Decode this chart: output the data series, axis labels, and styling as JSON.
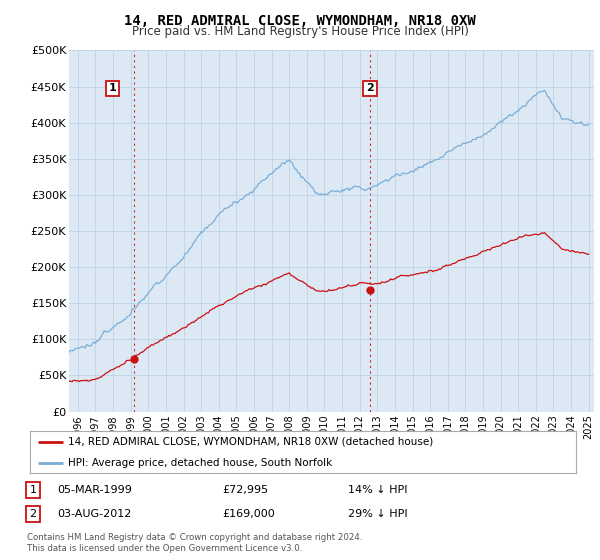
{
  "title": "14, RED ADMIRAL CLOSE, WYMONDHAM, NR18 0XW",
  "subtitle": "Price paid vs. HM Land Registry's House Price Index (HPI)",
  "ylabel_ticks": [
    "£0",
    "£50K",
    "£100K",
    "£150K",
    "£200K",
    "£250K",
    "£300K",
    "£350K",
    "£400K",
    "£450K",
    "£500K"
  ],
  "ytick_values": [
    0,
    50000,
    100000,
    150000,
    200000,
    250000,
    300000,
    350000,
    400000,
    450000,
    500000
  ],
  "ylim": [
    0,
    500000
  ],
  "xlim_start": 1995.5,
  "xlim_end": 2025.3,
  "hpi_color": "#7aaed6",
  "price_color": "#cc1111",
  "point1_x": 1999.17,
  "point1_y": 72995,
  "point2_x": 2012.58,
  "point2_y": 169000,
  "legend_line1": "14, RED ADMIRAL CLOSE, WYMONDHAM, NR18 0XW (detached house)",
  "legend_line2": "HPI: Average price, detached house, South Norfolk",
  "point1_date": "05-MAR-1999",
  "point1_price": "£72,995",
  "point1_note": "14% ↓ HPI",
  "point2_date": "03-AUG-2012",
  "point2_price": "£169,000",
  "point2_note": "29% ↓ HPI",
  "footnote": "Contains HM Land Registry data © Crown copyright and database right 2024.\nThis data is licensed under the Open Government Licence v3.0.",
  "vline_color": "#cc1111",
  "background_color": "#ffffff",
  "plot_bg_color": "#dce9f5",
  "grid_color": "#b8cfe0"
}
